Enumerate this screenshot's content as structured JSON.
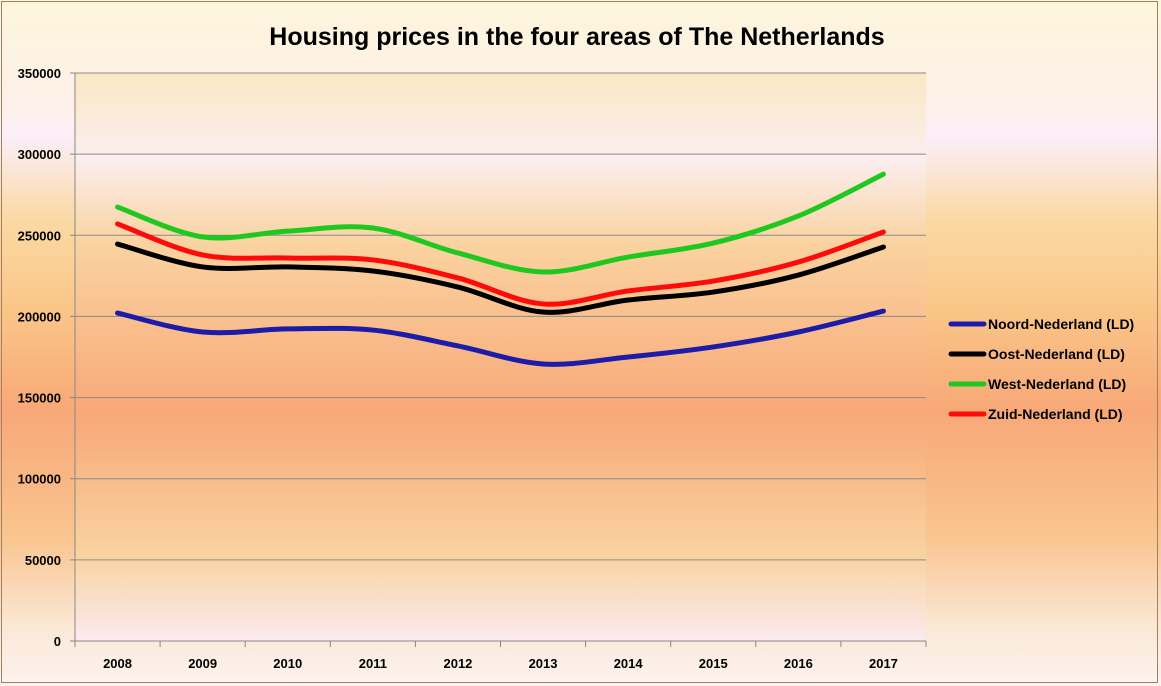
{
  "chart_data": {
    "type": "line",
    "title": "Housing prices  in the four areas of The Netherlands",
    "xlabel": "",
    "ylabel": "",
    "categories": [
      "2008",
      "2009",
      "2010",
      "2011",
      "2012",
      "2013",
      "2014",
      "2015",
      "2016",
      "2017"
    ],
    "ylim": [
      0,
      350000
    ],
    "yticks": [
      "0",
      "50000",
      "100000",
      "150000",
      "200000",
      "250000",
      "300000",
      "350000"
    ],
    "grid": true,
    "legend_position": "right",
    "series": [
      {
        "name": "Noord-Nederland (LD)",
        "color": "#1c1ca8",
        "values": [
          202100,
          190400,
          192300,
          191600,
          181800,
          170700,
          175000,
          181200,
          190400,
          203300
        ]
      },
      {
        "name": "Oost-Nederland (LD)",
        "color": "#000000",
        "values": [
          244600,
          230500,
          230500,
          228000,
          218100,
          202700,
          210100,
          215000,
          225500,
          242800
        ]
      },
      {
        "name": "West-Nederland (LD)",
        "color": "#1ec81e",
        "values": [
          267400,
          249000,
          252600,
          254500,
          239100,
          227400,
          236600,
          245200,
          261900,
          287700
        ]
      },
      {
        "name": "Zuid-Nederland (LD)",
        "color": "#ff0a0a",
        "values": [
          257000,
          237900,
          236000,
          234800,
          223700,
          207700,
          215700,
          221800,
          233500,
          252000
        ]
      }
    ]
  }
}
